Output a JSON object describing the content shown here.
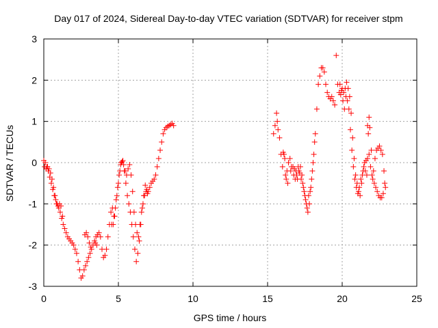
{
  "chart_data": {
    "type": "scatter",
    "title": "Day 017 of 2024, Sidereal Day-to-day VTEC variation (SDTVAR) for receiver stpm",
    "xlabel": "GPS time / hours",
    "ylabel": "SDTVAR / TECUs",
    "xlim": [
      0,
      25
    ],
    "ylim": [
      -3,
      3
    ],
    "x_ticks": [
      0,
      5,
      10,
      15,
      20,
      25
    ],
    "y_ticks": [
      -3,
      -2,
      -1,
      0,
      1,
      2,
      3
    ],
    "x_tick_labels": [
      "0",
      "5",
      "10",
      "15",
      "20",
      "25"
    ],
    "y_tick_labels": [
      "-3",
      "-2",
      "-1",
      "0",
      "1",
      "2",
      "3"
    ],
    "grid": true,
    "marker": "plus",
    "series": [
      {
        "name": "SDTVAR",
        "color": "#ff0000",
        "points": [
          [
            0.0,
            0.05
          ],
          [
            0.1,
            0.0
          ],
          [
            0.2,
            -0.1
          ],
          [
            0.3,
            -0.2
          ],
          [
            0.4,
            -0.35
          ],
          [
            0.5,
            -0.5
          ],
          [
            0.6,
            -0.65
          ],
          [
            0.7,
            -0.8
          ],
          [
            0.8,
            -0.9
          ],
          [
            0.9,
            -1.0
          ],
          [
            1.0,
            -1.1
          ],
          [
            1.1,
            -1.2
          ],
          [
            1.2,
            -1.35
          ],
          [
            1.3,
            -1.5
          ],
          [
            1.4,
            -1.6
          ],
          [
            1.5,
            -1.7
          ],
          [
            1.6,
            -1.8
          ],
          [
            1.7,
            -1.85
          ],
          [
            1.8,
            -1.9
          ],
          [
            1.9,
            -1.95
          ],
          [
            2.0,
            -2.0
          ],
          [
            2.1,
            -2.1
          ],
          [
            2.2,
            -2.2
          ],
          [
            2.3,
            -2.4
          ],
          [
            2.4,
            -2.6
          ],
          [
            2.5,
            -2.8
          ],
          [
            2.6,
            -2.75
          ],
          [
            2.7,
            -2.6
          ],
          [
            2.8,
            -2.5
          ],
          [
            2.9,
            -2.4
          ],
          [
            3.0,
            -2.3
          ],
          [
            3.1,
            -2.2
          ],
          [
            3.2,
            -2.1
          ],
          [
            3.3,
            -2.0
          ],
          [
            3.4,
            -1.9
          ],
          [
            3.5,
            -1.8
          ],
          [
            3.6,
            -1.75
          ],
          [
            3.7,
            -1.7
          ],
          [
            3.8,
            -1.8
          ],
          [
            3.9,
            -2.1
          ],
          [
            4.0,
            -2.3
          ],
          [
            4.1,
            -2.25
          ],
          [
            4.2,
            -2.1
          ],
          [
            4.3,
            -1.8
          ],
          [
            4.4,
            -1.5
          ],
          [
            4.5,
            -1.2
          ],
          [
            4.6,
            -1.1
          ],
          [
            4.7,
            -1.3
          ],
          [
            4.8,
            -1.1
          ],
          [
            4.9,
            -0.8
          ],
          [
            5.0,
            -0.5
          ],
          [
            5.1,
            -0.2
          ],
          [
            5.2,
            0.0
          ],
          [
            5.3,
            0.05
          ],
          [
            5.4,
            -0.2
          ],
          [
            5.5,
            -0.5
          ],
          [
            5.6,
            -0.8
          ],
          [
            5.7,
            -1.0
          ],
          [
            5.8,
            -1.2
          ],
          [
            5.9,
            -1.5
          ],
          [
            6.0,
            -1.8
          ],
          [
            6.1,
            -2.1
          ],
          [
            6.2,
            -2.4
          ],
          [
            6.3,
            -2.2
          ],
          [
            6.4,
            -1.9
          ],
          [
            6.5,
            -1.5
          ],
          [
            6.6,
            -1.1
          ],
          [
            6.7,
            -0.8
          ],
          [
            6.8,
            -0.55
          ],
          [
            6.9,
            -0.65
          ],
          [
            7.0,
            -0.7
          ],
          [
            7.1,
            -0.6
          ],
          [
            7.2,
            -0.5
          ],
          [
            7.3,
            -0.45
          ],
          [
            7.4,
            -0.4
          ],
          [
            7.5,
            -0.3
          ],
          [
            7.6,
            -0.1
          ],
          [
            7.7,
            0.1
          ],
          [
            7.8,
            0.3
          ],
          [
            7.9,
            0.5
          ],
          [
            8.0,
            0.7
          ],
          [
            8.1,
            0.8
          ],
          [
            8.2,
            0.85
          ],
          [
            8.3,
            0.88
          ],
          [
            8.4,
            0.9
          ],
          [
            8.5,
            0.92
          ],
          [
            8.6,
            0.95
          ],
          [
            8.7,
            0.9
          ],
          [
            0.05,
            -0.1
          ],
          [
            0.15,
            -0.15
          ],
          [
            0.25,
            -0.1
          ],
          [
            0.35,
            -0.15
          ],
          [
            0.45,
            -0.25
          ],
          [
            0.55,
            -0.4
          ],
          [
            0.65,
            -0.6
          ],
          [
            0.75,
            -0.8
          ],
          [
            0.85,
            -1.0
          ],
          [
            0.95,
            -1.05
          ],
          [
            1.05,
            -1.0
          ],
          [
            1.15,
            -1.05
          ],
          [
            1.25,
            -1.3
          ],
          [
            2.75,
            -1.75
          ],
          [
            2.85,
            -1.7
          ],
          [
            2.95,
            -1.8
          ],
          [
            3.05,
            -1.95
          ],
          [
            3.15,
            -2.05
          ],
          [
            3.45,
            -1.95
          ],
          [
            3.55,
            -2.0
          ],
          [
            4.55,
            -1.5
          ],
          [
            4.65,
            -1.5
          ],
          [
            4.75,
            -1.3
          ],
          [
            4.85,
            -0.9
          ],
          [
            4.95,
            -0.6
          ],
          [
            5.05,
            -0.3
          ],
          [
            5.15,
            -0.05
          ],
          [
            5.25,
            0.02
          ],
          [
            5.35,
            -0.05
          ],
          [
            5.45,
            -0.2
          ],
          [
            5.55,
            -0.3
          ],
          [
            5.65,
            -0.15
          ],
          [
            5.75,
            -0.05
          ],
          [
            5.85,
            -0.3
          ],
          [
            5.95,
            -0.7
          ],
          [
            6.05,
            -1.2
          ],
          [
            6.15,
            -1.5
          ],
          [
            6.25,
            -1.7
          ],
          [
            6.35,
            -1.8
          ],
          [
            6.45,
            -1.5
          ],
          [
            6.55,
            -1.2
          ],
          [
            6.65,
            -1.0
          ],
          [
            6.75,
            -0.8
          ],
          [
            6.85,
            -0.7
          ],
          [
            6.95,
            -0.75
          ],
          [
            15.4,
            0.7
          ],
          [
            15.5,
            0.9
          ],
          [
            15.6,
            1.2
          ],
          [
            15.65,
            1.0
          ],
          [
            15.7,
            0.8
          ],
          [
            15.8,
            0.6
          ],
          [
            15.9,
            0.2
          ],
          [
            16.0,
            -0.1
          ],
          [
            16.1,
            0.2
          ],
          [
            16.2,
            -0.3
          ],
          [
            16.3,
            -0.2
          ],
          [
            16.4,
            0.0
          ],
          [
            16.5,
            0.1
          ],
          [
            16.6,
            -0.1
          ],
          [
            16.7,
            -0.1
          ],
          [
            16.8,
            -0.15
          ],
          [
            16.9,
            -0.2
          ],
          [
            17.0,
            -0.4
          ],
          [
            17.1,
            -0.2
          ],
          [
            17.2,
            -0.1
          ],
          [
            17.3,
            -0.3
          ],
          [
            17.4,
            -0.6
          ],
          [
            17.5,
            -0.8
          ],
          [
            17.6,
            -1.0
          ],
          [
            17.7,
            -1.2
          ],
          [
            17.8,
            -1.0
          ],
          [
            17.9,
            -0.6
          ],
          [
            18.0,
            -0.2
          ],
          [
            18.1,
            0.2
          ],
          [
            18.2,
            0.7
          ],
          [
            18.3,
            1.3
          ],
          [
            18.4,
            1.9
          ],
          [
            18.5,
            2.1
          ],
          [
            18.6,
            2.3
          ],
          [
            18.7,
            2.3
          ],
          [
            18.8,
            2.2
          ],
          [
            18.9,
            1.9
          ],
          [
            19.0,
            1.7
          ],
          [
            19.1,
            1.6
          ],
          [
            19.2,
            1.55
          ],
          [
            19.3,
            1.6
          ],
          [
            19.4,
            1.5
          ],
          [
            19.5,
            1.4
          ],
          [
            19.6,
            2.6
          ],
          [
            19.7,
            1.9
          ],
          [
            19.8,
            1.7
          ],
          [
            19.9,
            1.65
          ],
          [
            20.0,
            1.8
          ],
          [
            20.1,
            1.7
          ],
          [
            20.2,
            1.8
          ],
          [
            20.3,
            1.95
          ],
          [
            20.4,
            1.8
          ],
          [
            20.5,
            1.6
          ],
          [
            20.6,
            1.2
          ],
          [
            20.7,
            0.6
          ],
          [
            20.8,
            0.1
          ],
          [
            20.9,
            -0.3
          ],
          [
            21.0,
            -0.5
          ],
          [
            21.1,
            -0.7
          ],
          [
            21.2,
            -0.8
          ],
          [
            21.3,
            -0.5
          ],
          [
            21.4,
            -0.2
          ],
          [
            21.5,
            0.0
          ],
          [
            21.6,
            0.05
          ],
          [
            21.7,
            0.1
          ],
          [
            21.8,
            0.2
          ],
          [
            21.9,
            -0.1
          ],
          [
            22.0,
            -0.3
          ],
          [
            22.1,
            -0.2
          ],
          [
            22.2,
            0.1
          ],
          [
            22.3,
            0.3
          ],
          [
            22.4,
            0.35
          ],
          [
            22.5,
            0.4
          ],
          [
            22.6,
            0.3
          ],
          [
            22.7,
            0.2
          ],
          [
            22.8,
            -0.2
          ],
          [
            22.9,
            -0.6
          ],
          [
            16.05,
            0.25
          ],
          [
            16.15,
            0.1
          ],
          [
            16.25,
            -0.4
          ],
          [
            16.35,
            -0.5
          ],
          [
            16.55,
            -0.2
          ],
          [
            16.75,
            -0.3
          ],
          [
            16.85,
            -0.4
          ],
          [
            16.95,
            -0.3
          ],
          [
            17.05,
            -0.1
          ],
          [
            17.15,
            -0.25
          ],
          [
            17.25,
            -0.4
          ],
          [
            17.35,
            -0.5
          ],
          [
            17.45,
            -0.7
          ],
          [
            17.55,
            -0.9
          ],
          [
            17.65,
            -1.1
          ],
          [
            17.75,
            -0.8
          ],
          [
            17.85,
            -0.7
          ],
          [
            17.95,
            -0.4
          ],
          [
            18.05,
            0.0
          ],
          [
            18.15,
            0.5
          ],
          [
            19.85,
            1.9
          ],
          [
            19.95,
            1.75
          ],
          [
            20.05,
            1.5
          ],
          [
            20.15,
            1.3
          ],
          [
            20.25,
            1.6
          ],
          [
            20.35,
            1.5
          ],
          [
            20.45,
            1.3
          ],
          [
            20.55,
            0.8
          ],
          [
            20.65,
            0.3
          ],
          [
            20.75,
            -0.1
          ],
          [
            20.85,
            -0.4
          ],
          [
            20.95,
            -0.6
          ],
          [
            21.05,
            -0.75
          ],
          [
            21.15,
            -0.6
          ],
          [
            21.25,
            -0.4
          ],
          [
            21.35,
            -0.3
          ],
          [
            21.45,
            -0.1
          ],
          [
            21.55,
            -0.2
          ],
          [
            21.65,
            -0.3
          ],
          [
            21.7,
            0.9
          ],
          [
            21.75,
            0.7
          ],
          [
            21.8,
            1.1
          ],
          [
            21.85,
            0.85
          ],
          [
            21.95,
            0.3
          ],
          [
            22.05,
            -0.4
          ],
          [
            22.15,
            -0.5
          ],
          [
            22.25,
            -0.6
          ],
          [
            22.35,
            -0.7
          ],
          [
            22.45,
            -0.8
          ],
          [
            22.55,
            -0.85
          ],
          [
            22.65,
            -0.85
          ],
          [
            22.75,
            -0.75
          ],
          [
            22.85,
            -0.5
          ]
        ]
      }
    ]
  }
}
